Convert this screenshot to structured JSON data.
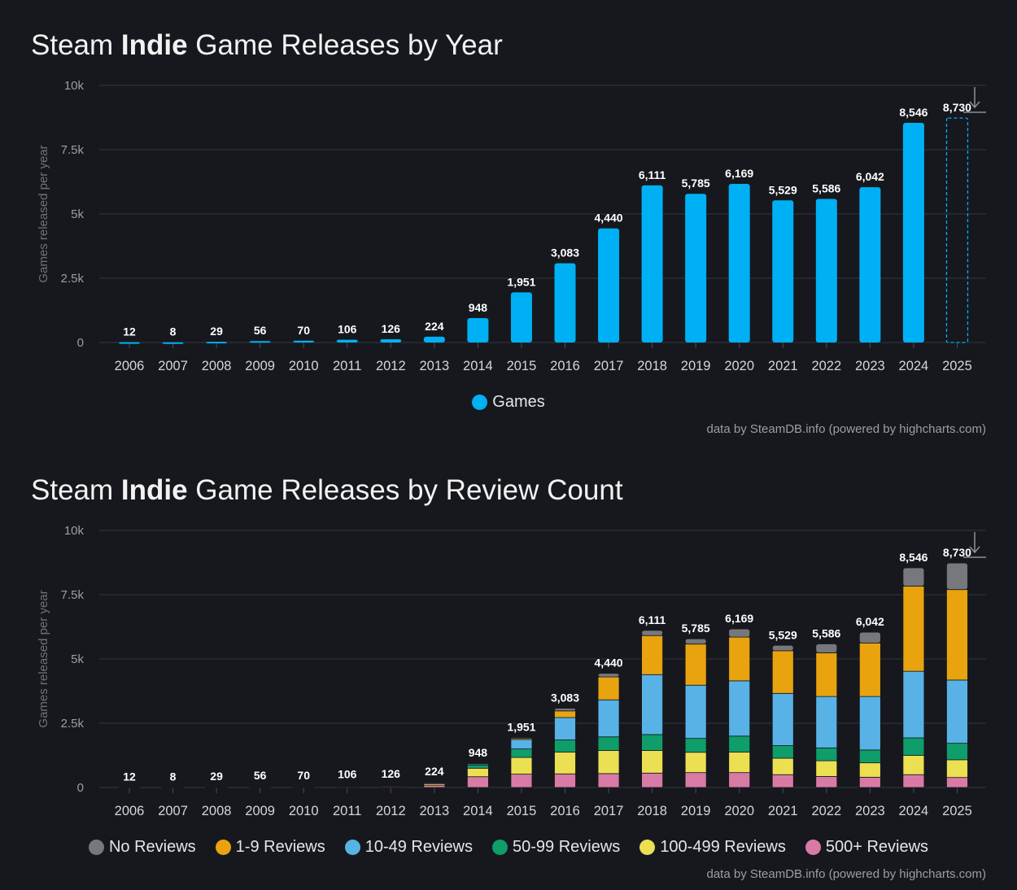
{
  "charts": [
    {
      "title_pre": "Steam ",
      "title_bold": "Indie",
      "title_post": " Game Releases by Year"
    },
    {
      "title_pre": "Steam ",
      "title_bold": "Indie",
      "title_post": " Game Releases by Review Count"
    }
  ],
  "credit": "data by SteamDB.info (powered by highcharts.com)",
  "colors": {
    "games": "#00b0f4",
    "grid": "#333740",
    "axis_text": "#9a9ea6",
    "label": "#ffffff"
  },
  "chart_data": [
    {
      "type": "bar",
      "title": "Steam Indie Game Releases by Year",
      "ylabel": "Games released per year",
      "ylim": [
        0,
        10000
      ],
      "yticks": [
        0,
        2500,
        5000,
        7500,
        10000
      ],
      "ytick_labels": [
        "0",
        "2.5k",
        "5k",
        "7.5k",
        "10k"
      ],
      "categories": [
        "2006",
        "2007",
        "2008",
        "2009",
        "2010",
        "2011",
        "2012",
        "2013",
        "2014",
        "2015",
        "2016",
        "2017",
        "2018",
        "2019",
        "2020",
        "2021",
        "2022",
        "2023",
        "2024",
        "2025"
      ],
      "series": [
        {
          "name": "Games",
          "color": "#00b0f4",
          "values": [
            12,
            8,
            29,
            56,
            70,
            106,
            126,
            224,
            948,
            1951,
            3083,
            4440,
            6111,
            5785,
            6169,
            5529,
            5586,
            6042,
            8546,
            8730
          ]
        }
      ],
      "labels": [
        "12",
        "8",
        "29",
        "56",
        "70",
        "106",
        "126",
        "224",
        "948",
        "1,951",
        "3,083",
        "4,440",
        "6,111",
        "5,785",
        "6,169",
        "5,529",
        "5,586",
        "6,042",
        "8,546",
        "8,730"
      ],
      "projected_last": true
    },
    {
      "type": "bar",
      "stacked": true,
      "title": "Steam Indie Game Releases by Review Count",
      "ylabel": "Games released per year",
      "ylim": [
        0,
        10000
      ],
      "yticks": [
        0,
        2500,
        5000,
        7500,
        10000
      ],
      "ytick_labels": [
        "0",
        "2.5k",
        "5k",
        "7.5k",
        "10k"
      ],
      "categories": [
        "2006",
        "2007",
        "2008",
        "2009",
        "2010",
        "2011",
        "2012",
        "2013",
        "2014",
        "2015",
        "2016",
        "2017",
        "2018",
        "2019",
        "2020",
        "2021",
        "2022",
        "2023",
        "2024",
        "2025"
      ],
      "labels": [
        "12",
        "8",
        "29",
        "56",
        "70",
        "106",
        "126",
        "224",
        "948",
        "1,951",
        "3,083",
        "4,440",
        "6,111",
        "5,785",
        "6,169",
        "5,529",
        "5,586",
        "6,042",
        "8,546",
        "8,730"
      ],
      "totals": [
        12,
        8,
        29,
        56,
        70,
        106,
        126,
        224,
        948,
        1951,
        3083,
        4440,
        6111,
        5785,
        6169,
        5529,
        5586,
        6042,
        8546,
        8730
      ],
      "series": [
        {
          "name": "500+ Reviews",
          "color": "#d97aa6",
          "values": [
            5,
            3,
            10,
            18,
            22,
            30,
            35,
            90,
            420,
            520,
            530,
            540,
            560,
            580,
            580,
            500,
            430,
            400,
            500,
            390
          ]
        },
        {
          "name": "100-499 Reviews",
          "color": "#ebe052",
          "values": [
            3,
            2,
            8,
            15,
            18,
            25,
            30,
            60,
            330,
            650,
            850,
            900,
            880,
            790,
            800,
            640,
            610,
            560,
            750,
            690
          ]
        },
        {
          "name": "50-99 Reviews",
          "color": "#0f9d6a",
          "values": [
            1,
            1,
            4,
            8,
            10,
            15,
            18,
            25,
            120,
            330,
            470,
            530,
            620,
            540,
            620,
            490,
            500,
            500,
            680,
            640
          ]
        },
        {
          "name": "10-49 Reviews",
          "color": "#58b2e6",
          "values": [
            2,
            1,
            5,
            10,
            12,
            20,
            25,
            30,
            50,
            370,
            870,
            1440,
            2330,
            2070,
            2150,
            2030,
            2000,
            2080,
            2590,
            2460
          ]
        },
        {
          "name": "1-9 Reviews",
          "color": "#e8a30e",
          "values": [
            1,
            1,
            2,
            5,
            8,
            16,
            18,
            19,
            28,
            50,
            260,
            890,
            1520,
            1600,
            1700,
            1660,
            1700,
            2080,
            3310,
            3520
          ]
        },
        {
          "name": "No Reviews",
          "color": "#77787d",
          "values": [
            0,
            0,
            0,
            0,
            0,
            0,
            0,
            0,
            0,
            31,
            103,
            140,
            201,
            205,
            319,
            209,
            346,
            422,
            716,
            1030
          ]
        }
      ],
      "legend_order": [
        "No Reviews",
        "1-9 Reviews",
        "10-49 Reviews",
        "50-99 Reviews",
        "100-499 Reviews",
        "500+ Reviews"
      ]
    }
  ]
}
